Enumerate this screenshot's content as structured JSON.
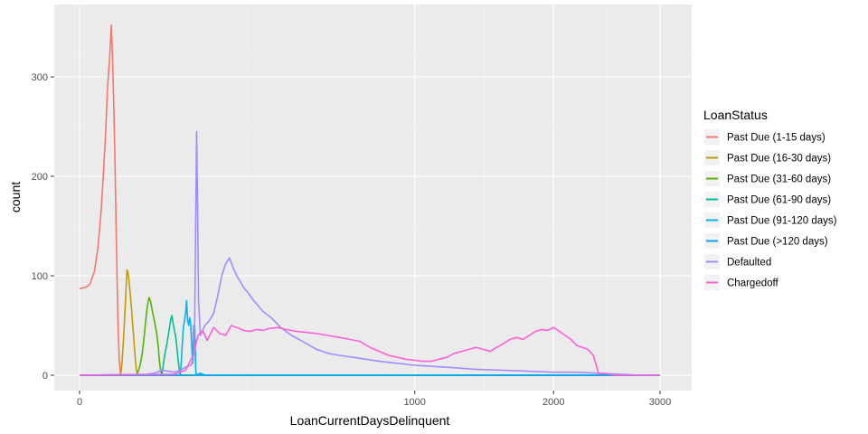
{
  "chart_data": {
    "type": "line",
    "xlabel": "LoanCurrentDaysDelinquent",
    "ylabel": "count",
    "x_axis_scale": "square-root",
    "x_ticks": [
      0,
      1000,
      2000,
      3000
    ],
    "x_tick_labels": [
      "0",
      "1000",
      "2000",
      "3000"
    ],
    "xlim": [
      0,
      3000
    ],
    "y_ticks": [
      0,
      100,
      200,
      300
    ],
    "y_tick_labels": [
      "0",
      "100",
      "200",
      "300"
    ],
    "ylim": [
      -10,
      355
    ],
    "grid": true,
    "legend": {
      "title": "LoanStatus",
      "position": "right"
    },
    "series": [
      {
        "name": "Past Due (1-15 days)",
        "color": "#F8766D",
        "points": [
          [
            0,
            87
          ],
          [
            0.5,
            89
          ],
          [
            1,
            92
          ],
          [
            2,
            105
          ],
          [
            3,
            128
          ],
          [
            4,
            160
          ],
          [
            5,
            200
          ],
          [
            6,
            242
          ],
          [
            7,
            290
          ],
          [
            8,
            318
          ],
          [
            9,
            352
          ],
          [
            10,
            300
          ],
          [
            11,
            230
          ],
          [
            12,
            140
          ],
          [
            13,
            60
          ],
          [
            14,
            15
          ],
          [
            15,
            1
          ],
          [
            15.5,
            0
          ]
        ]
      },
      {
        "name": "Past Due (16-30 days)",
        "color": "#C49A00",
        "points": [
          [
            15,
            0
          ],
          [
            16,
            12
          ],
          [
            17,
            32
          ],
          [
            18,
            55
          ],
          [
            19,
            80
          ],
          [
            20,
            106
          ],
          [
            21,
            103
          ],
          [
            22,
            92
          ],
          [
            23,
            80
          ],
          [
            24,
            68
          ],
          [
            25,
            52
          ],
          [
            26,
            40
          ],
          [
            27,
            25
          ],
          [
            28,
            12
          ],
          [
            29,
            4
          ],
          [
            30,
            0
          ]
        ]
      },
      {
        "name": "Past Due (31-60 days)",
        "color": "#53B400",
        "points": [
          [
            29,
            0
          ],
          [
            31,
            5
          ],
          [
            33,
            12
          ],
          [
            35,
            22
          ],
          [
            37,
            38
          ],
          [
            39,
            55
          ],
          [
            41,
            70
          ],
          [
            43,
            78
          ],
          [
            45,
            74
          ],
          [
            47,
            65
          ],
          [
            49,
            58
          ],
          [
            51,
            50
          ],
          [
            53,
            42
          ],
          [
            55,
            30
          ],
          [
            57,
            12
          ],
          [
            59,
            3
          ],
          [
            60,
            0
          ]
        ]
      },
      {
        "name": "Past Due (61-90 days)",
        "color": "#00C094",
        "points": [
          [
            60,
            0
          ],
          [
            62,
            8
          ],
          [
            64,
            18
          ],
          [
            66,
            25
          ],
          [
            68,
            32
          ],
          [
            70,
            40
          ],
          [
            72,
            48
          ],
          [
            74,
            56
          ],
          [
            76,
            60
          ],
          [
            78,
            52
          ],
          [
            80,
            45
          ],
          [
            82,
            40
          ],
          [
            84,
            30
          ],
          [
            86,
            18
          ],
          [
            88,
            8
          ],
          [
            90,
            0
          ]
        ]
      },
      {
        "name": "Past Due (91-120 days)",
        "color": "#00B6EB",
        "points": [
          [
            90,
            0
          ],
          [
            92,
            12
          ],
          [
            94,
            32
          ],
          [
            96,
            48
          ],
          [
            98,
            55
          ],
          [
            100,
            62
          ],
          [
            102,
            75
          ],
          [
            104,
            55
          ],
          [
            106,
            50
          ],
          [
            108,
            58
          ],
          [
            110,
            52
          ],
          [
            112,
            30
          ],
          [
            114,
            12
          ],
          [
            116,
            50
          ],
          [
            118,
            50
          ],
          [
            120,
            8
          ],
          [
            121,
            0
          ]
        ]
      },
      {
        "name": "Past Due (>120 days)",
        "color": "#06A4FF",
        "points": [
          [
            121,
            0
          ],
          [
            125,
            1
          ],
          [
            130,
            2
          ],
          [
            135,
            1
          ],
          [
            140,
            0
          ]
        ]
      },
      {
        "name": "Defaulted",
        "color": "#A58AFF",
        "points": [
          [
            0,
            0
          ],
          [
            40,
            1
          ],
          [
            50,
            2
          ],
          [
            60,
            5
          ],
          [
            70,
            4
          ],
          [
            80,
            3
          ],
          [
            90,
            5
          ],
          [
            100,
            8
          ],
          [
            110,
            10
          ],
          [
            115,
            15
          ],
          [
            118,
            55
          ],
          [
            120,
            150
          ],
          [
            122,
            245
          ],
          [
            124,
            170
          ],
          [
            126,
            75
          ],
          [
            130,
            40
          ],
          [
            140,
            50
          ],
          [
            150,
            55
          ],
          [
            160,
            62
          ],
          [
            170,
            80
          ],
          [
            180,
            100
          ],
          [
            190,
            112
          ],
          [
            200,
            118
          ],
          [
            210,
            108
          ],
          [
            220,
            100
          ],
          [
            230,
            94
          ],
          [
            240,
            88
          ],
          [
            250,
            84
          ],
          [
            270,
            75
          ],
          [
            300,
            64
          ],
          [
            330,
            57
          ],
          [
            360,
            48
          ],
          [
            400,
            40
          ],
          [
            450,
            33
          ],
          [
            500,
            26
          ],
          [
            550,
            22
          ],
          [
            600,
            20
          ],
          [
            700,
            17
          ],
          [
            800,
            14
          ],
          [
            900,
            12
          ],
          [
            1000,
            10
          ],
          [
            1100,
            9
          ],
          [
            1200,
            8
          ],
          [
            1400,
            6
          ],
          [
            1600,
            5
          ],
          [
            1800,
            4
          ],
          [
            2000,
            3
          ],
          [
            2200,
            3
          ],
          [
            2400,
            2
          ],
          [
            2600,
            1
          ],
          [
            2800,
            0
          ]
        ]
      },
      {
        "name": "Chargedoff",
        "color": "#FB61D7",
        "points": [
          [
            0,
            0
          ],
          [
            80,
            1
          ],
          [
            100,
            5
          ],
          [
            115,
            20
          ],
          [
            125,
            40
          ],
          [
            135,
            45
          ],
          [
            145,
            35
          ],
          [
            160,
            48
          ],
          [
            175,
            42
          ],
          [
            190,
            40
          ],
          [
            205,
            50
          ],
          [
            220,
            48
          ],
          [
            240,
            45
          ],
          [
            260,
            44
          ],
          [
            280,
            46
          ],
          [
            300,
            45
          ],
          [
            320,
            47
          ],
          [
            350,
            48
          ],
          [
            380,
            46
          ],
          [
            420,
            44
          ],
          [
            460,
            43
          ],
          [
            500,
            42
          ],
          [
            550,
            40
          ],
          [
            600,
            38
          ],
          [
            650,
            36
          ],
          [
            700,
            34
          ],
          [
            750,
            28
          ],
          [
            800,
            24
          ],
          [
            850,
            20
          ],
          [
            900,
            18
          ],
          [
            950,
            16
          ],
          [
            1000,
            15
          ],
          [
            1050,
            14
          ],
          [
            1100,
            14
          ],
          [
            1150,
            16
          ],
          [
            1200,
            18
          ],
          [
            1250,
            22
          ],
          [
            1300,
            24
          ],
          [
            1350,
            26
          ],
          [
            1400,
            28
          ],
          [
            1450,
            26
          ],
          [
            1500,
            24
          ],
          [
            1550,
            28
          ],
          [
            1600,
            32
          ],
          [
            1650,
            36
          ],
          [
            1700,
            38
          ],
          [
            1750,
            36
          ],
          [
            1800,
            40
          ],
          [
            1850,
            44
          ],
          [
            1900,
            46
          ],
          [
            1950,
            45
          ],
          [
            2000,
            48
          ],
          [
            2050,
            44
          ],
          [
            2100,
            40
          ],
          [
            2150,
            36
          ],
          [
            2200,
            30
          ],
          [
            2250,
            28
          ],
          [
            2300,
            26
          ],
          [
            2350,
            20
          ],
          [
            2400,
            1
          ],
          [
            2450,
            2
          ],
          [
            2500,
            1
          ],
          [
            2550,
            0
          ],
          [
            3000,
            0
          ]
        ]
      }
    ]
  }
}
